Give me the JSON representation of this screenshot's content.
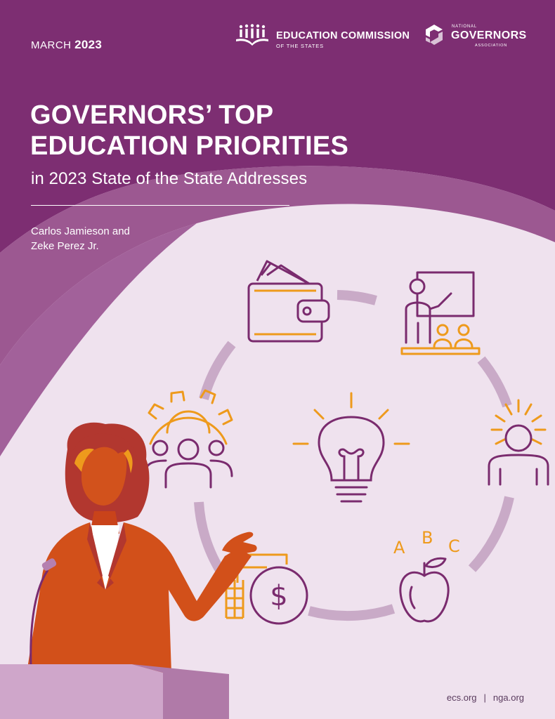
{
  "header": {
    "date_month": "MARCH",
    "date_year": "2023",
    "ecs": {
      "name": "EDUCATION COMMISSION",
      "sub": "OF THE STATES"
    },
    "nga": {
      "small": "NATIONAL",
      "big": "GOVERNORS",
      "assoc": "ASSOCIATION"
    }
  },
  "title": {
    "line1": "GOVERNORS’ TOP",
    "line2": "EDUCATION PRIORITIES",
    "subtitle": "in 2023 State of the State Addresses"
  },
  "authors": {
    "line1": "Carlos Jamieson and",
    "line2": "Zeke Perez Jr."
  },
  "illustration": {
    "abc": [
      "A",
      "B",
      "C"
    ],
    "dollar": "$",
    "icons": [
      "wallet-icon",
      "teacher-classroom-icon",
      "leader-spotlight-icon",
      "apple-abc-icon",
      "money-coins-icon",
      "team-gear-icon",
      "lightbulb-icon"
    ]
  },
  "footer": {
    "left": "ecs.org",
    "sep": "|",
    "right": "nga.org"
  },
  "colors": {
    "purple": "#7d2e72",
    "orange": "#ee9a1c",
    "icon_purple": "#7a2b6e",
    "ring": "#c9aac7",
    "light": "#efe2ee",
    "mid": "#a2619a"
  }
}
